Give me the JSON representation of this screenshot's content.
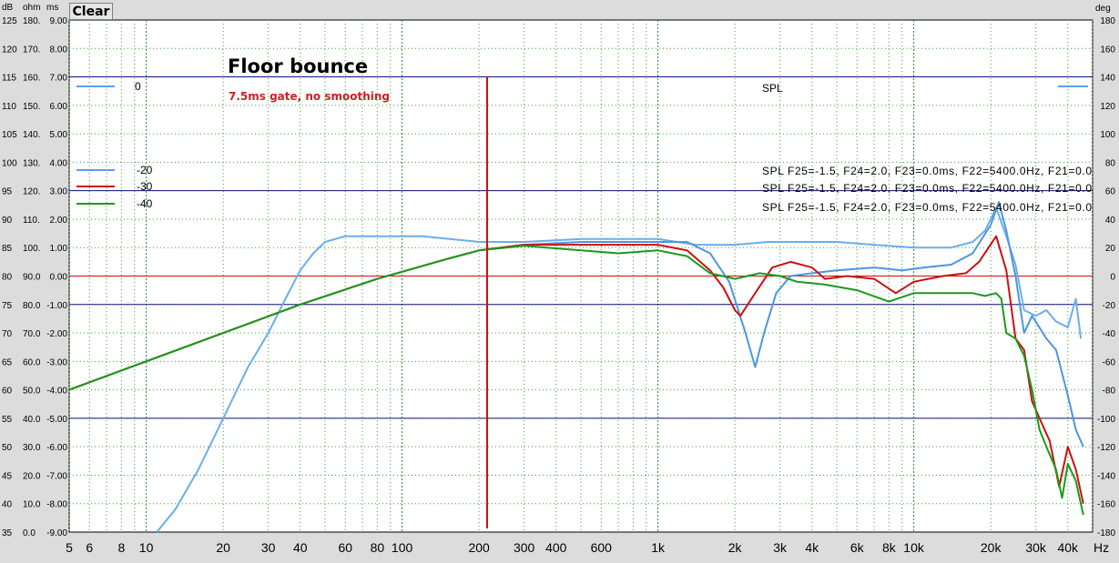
{
  "toolbar": {
    "clear_label": "Clear"
  },
  "chart_data": {
    "type": "line",
    "title": "Floor bounce",
    "subtitle": "7.5ms gate, no smoothing",
    "x_scale": "log",
    "xlim": [
      5,
      50000
    ],
    "x_unit": "Hz",
    "x_tick_labels": [
      {
        "v": 5,
        "t": "5"
      },
      {
        "v": 6,
        "t": "6"
      },
      {
        "v": 8,
        "t": "8"
      },
      {
        "v": 10,
        "t": "10"
      },
      {
        "v": 20,
        "t": "20"
      },
      {
        "v": 30,
        "t": "30"
      },
      {
        "v": 40,
        "t": "40"
      },
      {
        "v": 60,
        "t": "60"
      },
      {
        "v": 80,
        "t": "80"
      },
      {
        "v": 100,
        "t": "100"
      },
      {
        "v": 200,
        "t": "200"
      },
      {
        "v": 300,
        "t": "300"
      },
      {
        "v": 400,
        "t": "400"
      },
      {
        "v": 600,
        "t": "600"
      },
      {
        "v": 1000,
        "t": "1k"
      },
      {
        "v": 2000,
        "t": "2k"
      },
      {
        "v": 3000,
        "t": "3k"
      },
      {
        "v": 4000,
        "t": "4k"
      },
      {
        "v": 6000,
        "t": "6k"
      },
      {
        "v": 8000,
        "t": "8k"
      },
      {
        "v": 10000,
        "t": "10k"
      },
      {
        "v": 20000,
        "t": "20k"
      },
      {
        "v": 30000,
        "t": "30k"
      },
      {
        "v": 40000,
        "t": "40k"
      }
    ],
    "left_axis_units": [
      "dB",
      "ohm",
      "ms"
    ],
    "left_axis_rows": [
      {
        "db": "125",
        "ohm": "180.",
        "ms": "9.00"
      },
      {
        "db": "120",
        "ohm": "170.",
        "ms": "8.00"
      },
      {
        "db": "115",
        "ohm": "160.",
        "ms": "7.00"
      },
      {
        "db": "110",
        "ohm": "150.",
        "ms": "6.00"
      },
      {
        "db": "105",
        "ohm": "140.",
        "ms": "5.00"
      },
      {
        "db": "100",
        "ohm": "130.",
        "ms": "4.00"
      },
      {
        "db": "95",
        "ohm": "120.",
        "ms": "3.00"
      },
      {
        "db": "90",
        "ohm": "110.",
        "ms": "2.00"
      },
      {
        "db": "85",
        "ohm": "100.",
        "ms": "1.00"
      },
      {
        "db": "80",
        "ohm": "90.0",
        "ms": "0.00"
      },
      {
        "db": "75",
        "ohm": "80.0",
        "ms": "-1.00"
      },
      {
        "db": "70",
        "ohm": "70.0",
        "ms": "-2.00"
      },
      {
        "db": "65",
        "ohm": "60.0",
        "ms": "-3.00"
      },
      {
        "db": "60",
        "ohm": "50.0",
        "ms": "-4.00"
      },
      {
        "db": "55",
        "ohm": "40.0",
        "ms": "-5.00"
      },
      {
        "db": "50",
        "ohm": "30.0",
        "ms": "-6.00"
      },
      {
        "db": "45",
        "ohm": "20.0",
        "ms": "-7.00"
      },
      {
        "db": "40",
        "ohm": "10.0",
        "ms": "-8.00"
      },
      {
        "db": "35",
        "ohm": "0.0",
        "ms": "-9.00"
      }
    ],
    "ylim": [
      35,
      125
    ],
    "right_axis_unit": "deg",
    "right_ylim": [
      -180,
      180
    ],
    "right_axis_labels": [
      "180",
      "160",
      "140",
      "120",
      "100",
      "80",
      "60",
      "40",
      "20",
      "0",
      "-20",
      "-40",
      "-60",
      "-80",
      "-100",
      "-120",
      "-140",
      "-160",
      "-180"
    ],
    "reference_lines_db": [
      115,
      95,
      80,
      75,
      55
    ],
    "marker_line_db": 80,
    "cursor_hz": 215,
    "legend": [
      {
        "label": "0",
        "color": "#5aa0e6"
      },
      {
        "label": "-20",
        "color": "#5aa0e6"
      },
      {
        "label": "-30",
        "color": "#cc1010"
      },
      {
        "label": "-40",
        "color": "#1a9a1a"
      }
    ],
    "right_legend": [
      "SPL",
      "SPL  F25=-1.5, F24=2.0, F23=0.0ms, F22=5400.0Hz, F21=0.0",
      "SPL  F25=-1.5, F24=2.0, F23=0.0ms, F22=5400.0Hz, F21=0.0",
      "SPL  F25=-1.5, F24=2.0, F23=0.0ms, F22=5400.0Hz, F21=0.0"
    ],
    "right_legend_line_color": "#5aa0e6",
    "series": [
      {
        "name": "0",
        "color": "#6aaeea",
        "points": [
          [
            11,
            35
          ],
          [
            13,
            39
          ],
          [
            16,
            46
          ],
          [
            20,
            55
          ],
          [
            25,
            64
          ],
          [
            30,
            70
          ],
          [
            35,
            76
          ],
          [
            40,
            81
          ],
          [
            45,
            84
          ],
          [
            50,
            86
          ],
          [
            60,
            87
          ],
          [
            80,
            87
          ],
          [
            120,
            87
          ],
          [
            200,
            86
          ],
          [
            300,
            86
          ],
          [
            500,
            86.5
          ],
          [
            700,
            86.5
          ],
          [
            1000,
            86.5
          ],
          [
            1400,
            85.5
          ],
          [
            2000,
            85.5
          ],
          [
            2700,
            86
          ],
          [
            3500,
            86
          ],
          [
            5000,
            86
          ],
          [
            7000,
            85.5
          ],
          [
            10000,
            85
          ],
          [
            14000,
            85
          ],
          [
            17000,
            86
          ],
          [
            19000,
            88
          ],
          [
            21000,
            92
          ],
          [
            23000,
            87
          ],
          [
            25000,
            82
          ],
          [
            27000,
            74
          ],
          [
            30000,
            73
          ],
          [
            33000,
            74
          ],
          [
            36000,
            72
          ],
          [
            40000,
            71
          ],
          [
            43000,
            76
          ],
          [
            45000,
            69
          ]
        ]
      },
      {
        "name": "-20",
        "color": "#4d96e0",
        "points": [
          [
            5,
            60
          ],
          [
            10,
            65
          ],
          [
            20,
            70
          ],
          [
            40,
            75
          ],
          [
            80,
            79.5
          ],
          [
            150,
            83
          ],
          [
            200,
            84.5
          ],
          [
            300,
            85.5
          ],
          [
            500,
            86
          ],
          [
            800,
            86
          ],
          [
            1000,
            86
          ],
          [
            1300,
            86
          ],
          [
            1600,
            84
          ],
          [
            1900,
            79
          ],
          [
            2200,
            70
          ],
          [
            2400,
            64
          ],
          [
            2600,
            70
          ],
          [
            2900,
            77
          ],
          [
            3300,
            80
          ],
          [
            4000,
            80.5
          ],
          [
            5000,
            81
          ],
          [
            7000,
            81.5
          ],
          [
            9000,
            81
          ],
          [
            11000,
            81.5
          ],
          [
            14000,
            82
          ],
          [
            17000,
            84
          ],
          [
            20000,
            89
          ],
          [
            21500,
            93
          ],
          [
            23000,
            88
          ],
          [
            25000,
            80
          ],
          [
            27000,
            70
          ],
          [
            29000,
            73
          ],
          [
            33000,
            69
          ],
          [
            36000,
            67
          ],
          [
            40000,
            59
          ],
          [
            43000,
            53
          ],
          [
            46000,
            50
          ]
        ]
      },
      {
        "name": "-30",
        "color": "#cc1010",
        "points": [
          [
            5,
            60
          ],
          [
            10,
            65
          ],
          [
            20,
            70
          ],
          [
            40,
            75
          ],
          [
            80,
            79.5
          ],
          [
            150,
            83
          ],
          [
            200,
            84.5
          ],
          [
            300,
            85.5
          ],
          [
            500,
            85.5
          ],
          [
            800,
            85.5
          ],
          [
            1000,
            85.5
          ],
          [
            1300,
            84.5
          ],
          [
            1600,
            81
          ],
          [
            1800,
            78
          ],
          [
            2000,
            74
          ],
          [
            2100,
            73
          ],
          [
            2400,
            77
          ],
          [
            2800,
            81.5
          ],
          [
            3300,
            82.5
          ],
          [
            4000,
            81.5
          ],
          [
            4500,
            79.5
          ],
          [
            5500,
            80
          ],
          [
            7000,
            79.5
          ],
          [
            8500,
            77
          ],
          [
            10000,
            79
          ],
          [
            13000,
            80
          ],
          [
            16000,
            80.5
          ],
          [
            18000,
            82.5
          ],
          [
            21000,
            87
          ],
          [
            23000,
            81
          ],
          [
            25000,
            69
          ],
          [
            27000,
            67
          ],
          [
            29000,
            58
          ],
          [
            31000,
            55
          ],
          [
            34000,
            51
          ],
          [
            37000,
            43
          ],
          [
            40000,
            50
          ],
          [
            43000,
            46
          ],
          [
            46000,
            40
          ]
        ]
      },
      {
        "name": "-40",
        "color": "#1a9a1a",
        "points": [
          [
            5,
            60
          ],
          [
            10,
            65
          ],
          [
            20,
            70
          ],
          [
            40,
            75
          ],
          [
            80,
            79.5
          ],
          [
            150,
            83
          ],
          [
            200,
            84.5
          ],
          [
            300,
            85.3
          ],
          [
            500,
            84.5
          ],
          [
            700,
            84
          ],
          [
            1000,
            84.5
          ],
          [
            1300,
            83.5
          ],
          [
            1600,
            80.5
          ],
          [
            2000,
            79.5
          ],
          [
            2500,
            80.5
          ],
          [
            3000,
            80
          ],
          [
            3500,
            79
          ],
          [
            4500,
            78.5
          ],
          [
            6000,
            77.5
          ],
          [
            8000,
            75.5
          ],
          [
            10000,
            77
          ],
          [
            13000,
            77
          ],
          [
            17000,
            77
          ],
          [
            19000,
            76.5
          ],
          [
            21000,
            77
          ],
          [
            22000,
            76
          ],
          [
            23000,
            70
          ],
          [
            25000,
            69
          ],
          [
            27000,
            66
          ],
          [
            29000,
            60
          ],
          [
            31000,
            53
          ],
          [
            33000,
            50
          ],
          [
            36000,
            46
          ],
          [
            38000,
            41
          ],
          [
            40000,
            47
          ],
          [
            43000,
            44
          ],
          [
            46000,
            38
          ]
        ]
      }
    ]
  }
}
